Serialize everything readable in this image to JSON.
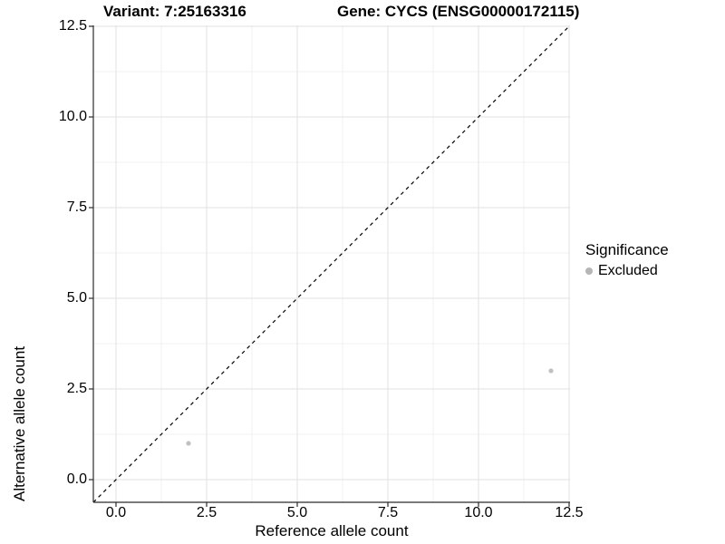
{
  "chart_data": {
    "type": "scatter",
    "title_left": "Variant: 7:25163316",
    "title_right": "Gene: CYCS (ENSG00000172115)",
    "xlabel": "Reference allele count",
    "ylabel": "Alternative allele count",
    "xlim": [
      -0.625,
      12.525
    ],
    "ylim": [
      -0.625,
      12.525
    ],
    "x_ticks": [
      {
        "v": 0,
        "label": "0.0"
      },
      {
        "v": 2.5,
        "label": "2.5"
      },
      {
        "v": 5,
        "label": "5.0"
      },
      {
        "v": 7.5,
        "label": "7.5"
      },
      {
        "v": 10,
        "label": "10.0"
      },
      {
        "v": 12.5,
        "label": "12.5"
      }
    ],
    "y_ticks": [
      {
        "v": 0,
        "label": "0.0"
      },
      {
        "v": 2.5,
        "label": "2.5"
      },
      {
        "v": 5,
        "label": "5.0"
      },
      {
        "v": 7.5,
        "label": "7.5"
      },
      {
        "v": 10,
        "label": "10.0"
      },
      {
        "v": 12.5,
        "label": "12.5"
      }
    ],
    "minor_ticks": [
      1.25,
      3.75,
      6.25,
      8.75,
      11.25
    ],
    "grid": true,
    "identity_line": {
      "slope": 1,
      "intercept": 0,
      "style": "dashed",
      "color": "#000000"
    },
    "series": [
      {
        "name": "Excluded",
        "color": "#c1c1c1",
        "points": [
          {
            "x": 2,
            "y": 1
          },
          {
            "x": 12,
            "y": 3
          }
        ]
      }
    ],
    "legend": {
      "title": "Significance",
      "position": "right",
      "entries": [
        {
          "label": "Excluded",
          "color": "#b6b6b6"
        }
      ]
    },
    "colors": {
      "axis_line": "#2b2b2b",
      "grid_major": "#e2e2e2",
      "grid_minor": "#f0f0f0",
      "text": "#000000"
    }
  }
}
